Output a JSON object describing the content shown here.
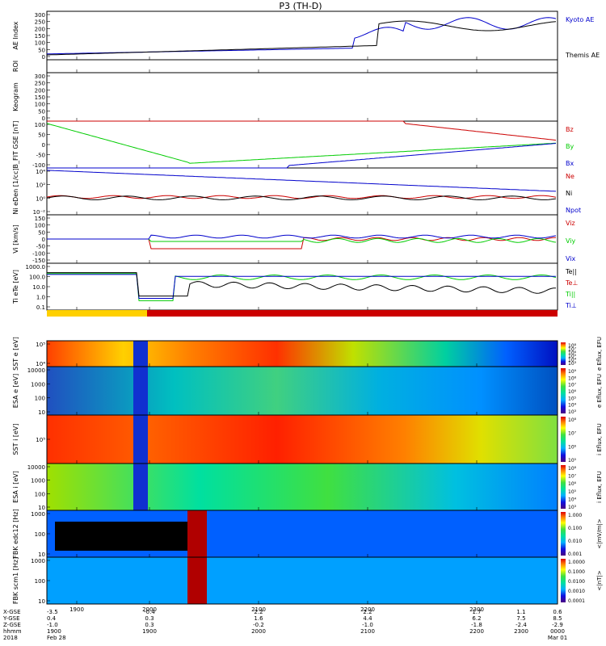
{
  "chart_data": {
    "type": "line",
    "title": "P3 (TH-D)",
    "time_ticks": [
      "1900",
      "2000",
      "2100",
      "2200",
      "2300"
    ],
    "footer": {
      "labels": [
        "X-GSE",
        "Y-GSE",
        "Z-GSE",
        "hhmm",
        "2018"
      ],
      "columns": [
        [
          "-3.5",
          "0.4",
          "-1.0",
          "1900",
          "Feb 28"
        ],
        [
          "-0.4",
          "0.3",
          "0.3",
          "1900",
          ""
        ],
        [
          "2.2",
          "1.6",
          "-0.2",
          "2000",
          ""
        ],
        [
          "2.2",
          "4.4",
          "-1.0",
          "2100",
          ""
        ],
        [
          "1.7",
          "6.2",
          "-1.8",
          "2200",
          ""
        ],
        [
          "1.1",
          "7.5",
          "-2.4",
          "2300",
          ""
        ],
        [
          "0.6",
          "8.5",
          "-2.9",
          "0000",
          "Mar 01"
        ]
      ]
    },
    "panels": [
      {
        "id": "ae",
        "ylabel": "AE Index",
        "yticks": [
          "300",
          "250",
          "200",
          "150",
          "100",
          "50",
          "0"
        ],
        "series": [
          {
            "name": "Kyoto AE",
            "color": "#0000cc"
          },
          {
            "name": "Themis AE",
            "color": "#000000"
          }
        ]
      },
      {
        "id": "roi",
        "ylabel": "ROI"
      },
      {
        "id": "keogram",
        "ylabel": "Keogram",
        "yticks": [
          "300",
          "250",
          "200",
          "150",
          "100",
          "50",
          "0"
        ]
      },
      {
        "id": "bfit",
        "ylabel": "B_FIT GSE [nT]",
        "yticks": [
          "100",
          "50",
          "0",
          "-50",
          "-100"
        ],
        "series": [
          {
            "name": "Bz",
            "color": "#cc0000"
          },
          {
            "name": "By",
            "color": "#00cc00"
          },
          {
            "name": "Bx",
            "color": "#0000cc"
          }
        ]
      },
      {
        "id": "ni",
        "ylabel": "Ni eDen [1/cc]",
        "yticks": [
          "10⁴",
          "10²",
          "10⁰",
          "10⁻²"
        ],
        "series": [
          {
            "name": "Ne",
            "color": "#cc0000"
          },
          {
            "name": "Ni",
            "color": "#000000"
          },
          {
            "name": "Npot",
            "color": "#0000cc"
          }
        ]
      },
      {
        "id": "vi",
        "ylabel": "Vi [km/s]",
        "yticks": [
          "150",
          "100",
          "50",
          "0",
          "-50",
          "-100",
          "-150"
        ],
        "series": [
          {
            "name": "Viz",
            "color": "#cc0000"
          },
          {
            "name": "Viy",
            "color": "#00cc00"
          },
          {
            "name": "Vix",
            "color": "#0000cc"
          }
        ]
      },
      {
        "id": "ti",
        "ylabel": "Ti eTe [eV]",
        "yticks": [
          "1000.0",
          "100.0",
          "10.0",
          "1.0",
          "0.1"
        ],
        "series": [
          {
            "name": "Te||",
            "color": "#000000"
          },
          {
            "name": "Te⊥",
            "color": "#cc0000"
          },
          {
            "name": "Ti||",
            "color": "#00cc00"
          },
          {
            "name": "Ti⊥",
            "color": "#0000cc"
          }
        ]
      },
      {
        "id": "sste",
        "ylabel": "SST e [eV]",
        "yticks": [
          "10⁵",
          "10⁴"
        ],
        "cbar_ticks": [
          "10⁸",
          "10⁷",
          "10⁶",
          "10⁵",
          "10⁴",
          "10³"
        ],
        "cbar_label": "e Eflux, EFU"
      },
      {
        "id": "esae",
        "ylabel": "ESA e [eV]",
        "yticks": [
          "10000",
          "1000",
          "100",
          "10"
        ],
        "cbar_ticks": [
          "10⁹",
          "10⁸",
          "10⁷",
          "10⁶",
          "10⁵",
          "10⁴",
          "10³"
        ],
        "cbar_label": "e Eflux, EFU"
      },
      {
        "id": "ssti",
        "ylabel": "SST i [eV]",
        "yticks": [
          "10⁵"
        ],
        "cbar_ticks": [
          "10⁸",
          "10⁷",
          "10⁶",
          "10⁵"
        ],
        "cbar_label": "i Eflux, EFU"
      },
      {
        "id": "esai",
        "ylabel": "ESA i [eV]",
        "yticks": [
          "10000",
          "1000",
          "100",
          "10"
        ],
        "cbar_ticks": [
          "10⁸",
          "10⁷",
          "10⁶",
          "10⁵",
          "10⁴",
          "10³"
        ],
        "cbar_label": "i Eflux, EFU"
      },
      {
        "id": "fbke",
        "ylabel": "FBK edc12 [Hz]",
        "yticks": [
          "1000",
          "100",
          "10"
        ],
        "cbar_ticks": [
          "1.000",
          "0.100",
          "0.010",
          "0.001"
        ],
        "cbar_label": "<|mV/m|>"
      },
      {
        "id": "fbkb",
        "ylabel": "FBK scm1 [Hz]",
        "yticks": [
          "1000",
          "100",
          "10"
        ],
        "cbar_ticks": [
          "1.0000",
          "0.1000",
          "0.0100",
          "0.0010",
          "0.0001"
        ],
        "cbar_label": "<|nT|>"
      }
    ]
  }
}
